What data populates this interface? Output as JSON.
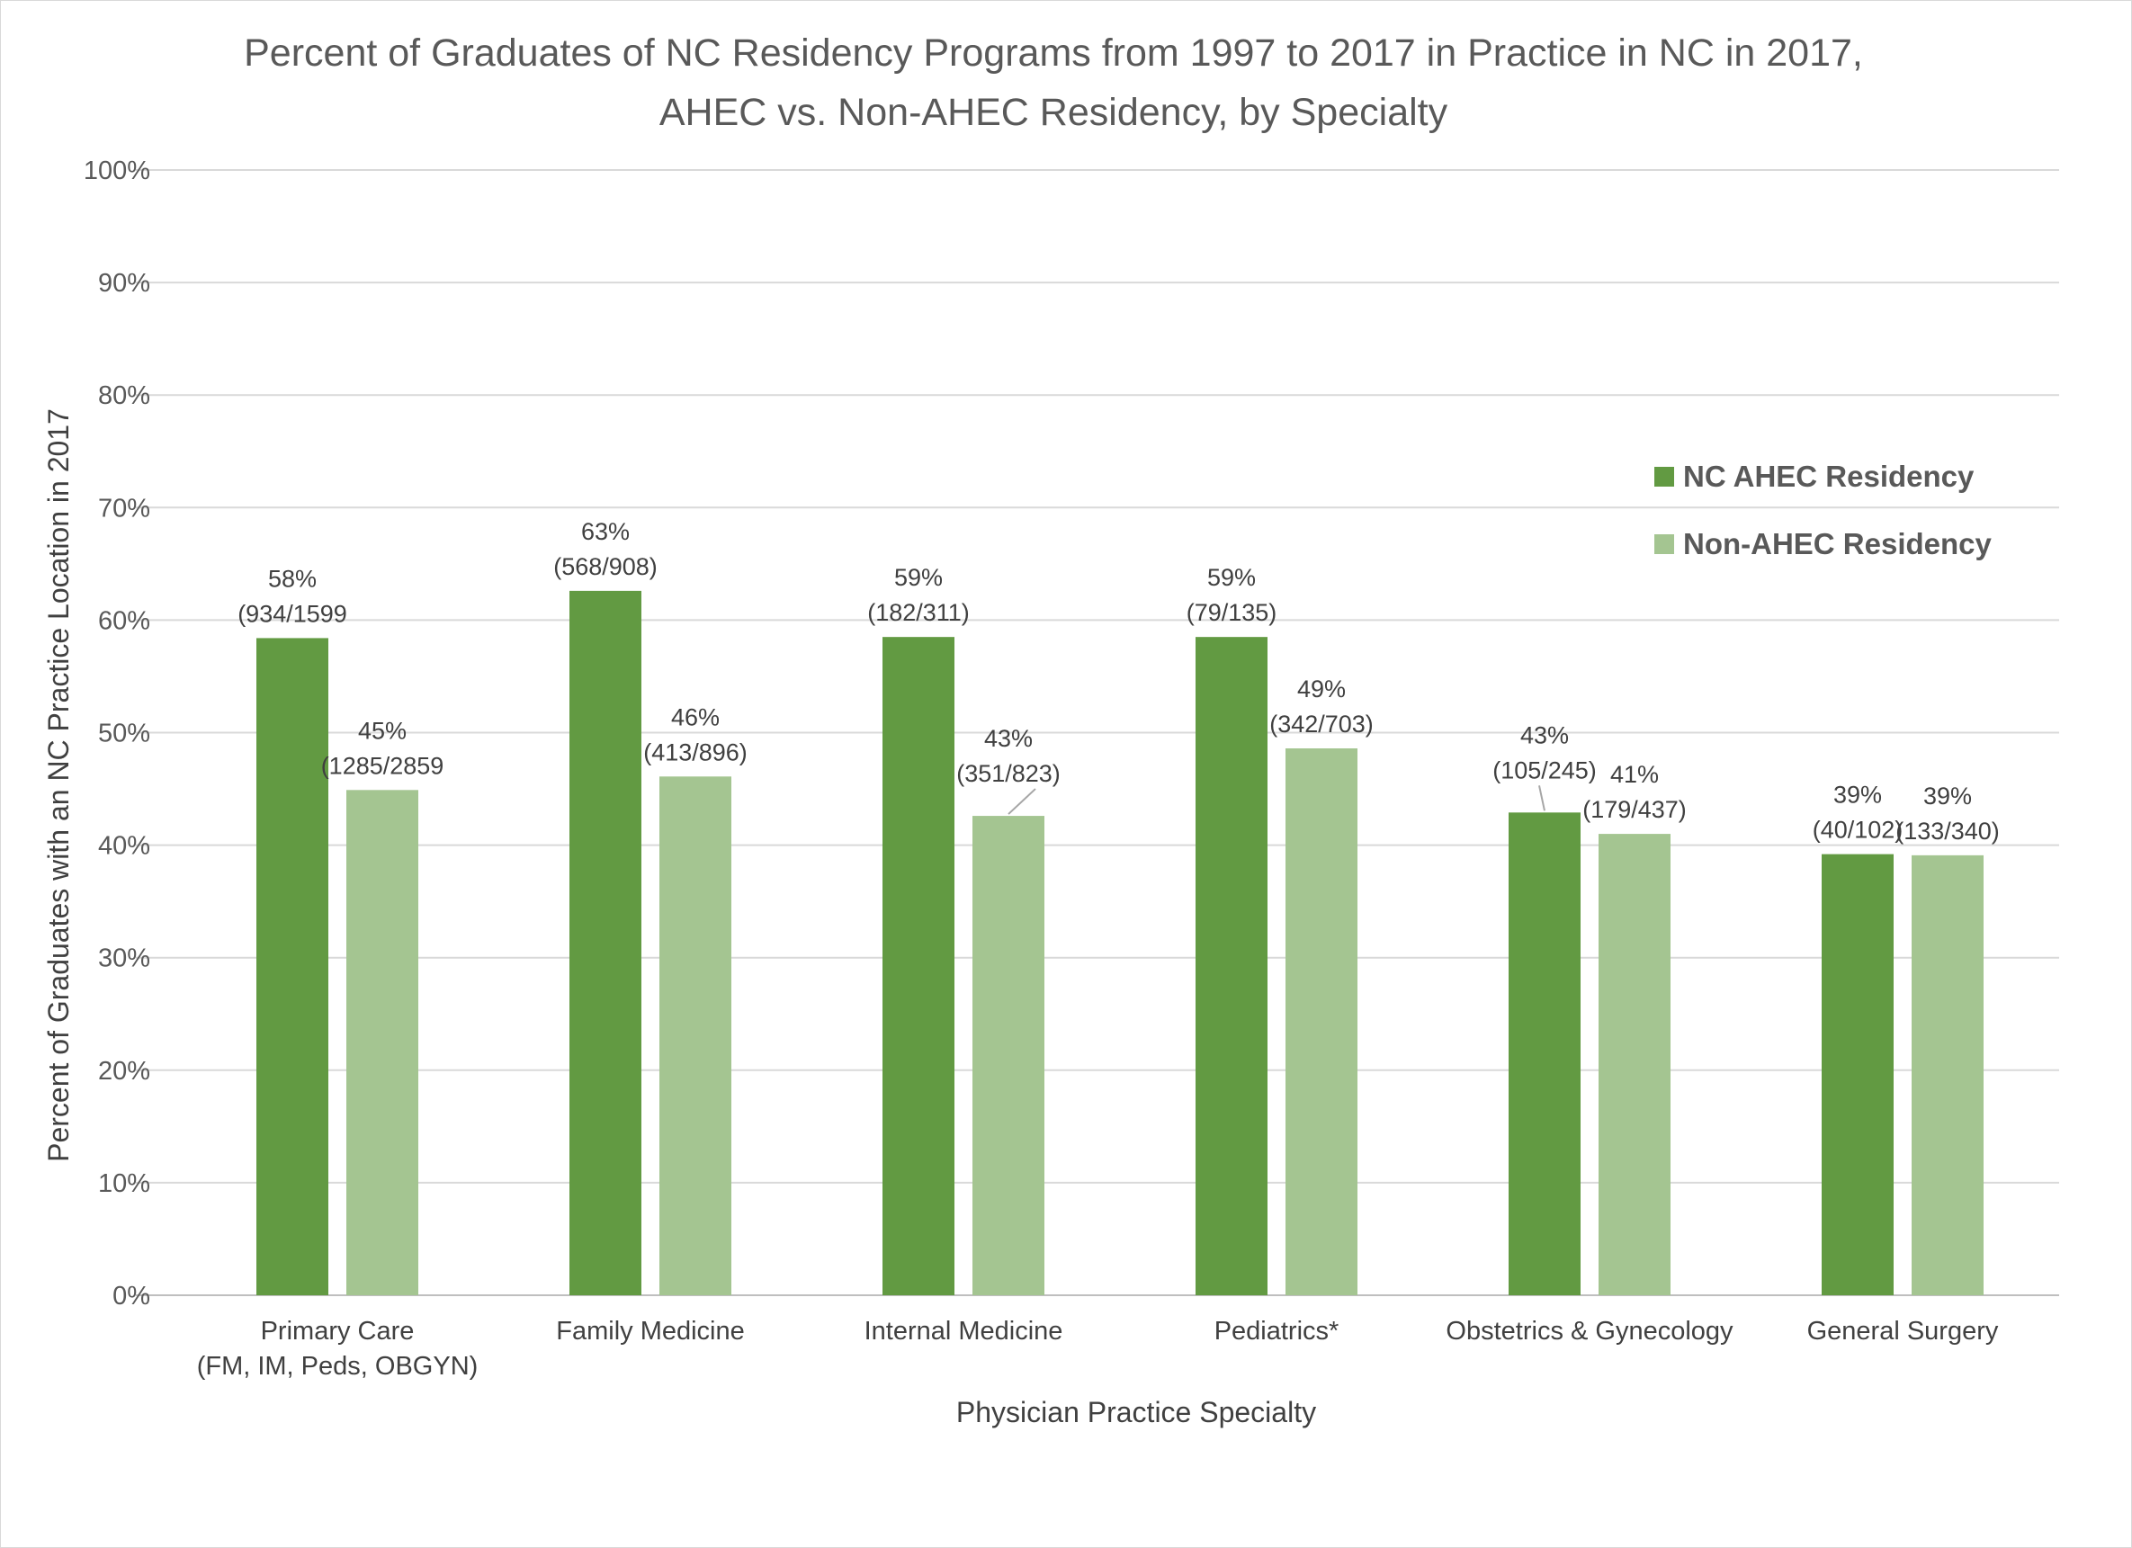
{
  "chart_data": {
    "type": "bar",
    "title": [
      "Percent of Graduates of NC Residency  Programs from 1997 to 2017 in Practice in NC in 2017,",
      "AHEC vs. Non-AHEC Residency,  by Specialty"
    ],
    "xlabel": "Physician Practice Specialty",
    "ylabel": "Percent of Graduates with an NC Practice Location in 2017",
    "ylim": [
      0,
      100
    ],
    "y_ticks": [
      "0%",
      "10%",
      "20%",
      "30%",
      "40%",
      "50%",
      "60%",
      "70%",
      "80%",
      "90%",
      "100%"
    ],
    "grid": true,
    "legend_position": "right",
    "categories": [
      [
        "Primary Care",
        "(FM, IM, Peds, OBGYN)"
      ],
      [
        "Family Medicine"
      ],
      [
        "Internal Medicine"
      ],
      [
        "Pediatrics*"
      ],
      [
        "Obstetrics & Gynecology"
      ],
      [
        "General Surgery"
      ]
    ],
    "series": [
      {
        "name": "NC AHEC Residency",
        "color": "#629a42",
        "values": [
          58.4,
          62.6,
          58.5,
          58.5,
          42.9,
          39.2
        ],
        "labels": [
          [
            "58%",
            "(934/1599"
          ],
          [
            "63%",
            "(568/908)"
          ],
          [
            "59%",
            "(182/311)"
          ],
          [
            "59%",
            "(79/135)"
          ],
          [
            "43%",
            "(105/245)"
          ],
          [
            "39%",
            "(40/102)"
          ]
        ]
      },
      {
        "name": "Non-AHEC Residency",
        "color": "#a4c591",
        "values": [
          44.9,
          46.1,
          42.6,
          48.6,
          41.0,
          39.1
        ],
        "labels": [
          [
            "45%",
            "(1285/2859"
          ],
          [
            "46%",
            "(413/896)"
          ],
          [
            "43%",
            "(351/823)"
          ],
          [
            "49%",
            "(342/703)"
          ],
          [
            "41%",
            "(179/437)"
          ],
          [
            "39%",
            "(133/340)"
          ]
        ]
      }
    ]
  }
}
